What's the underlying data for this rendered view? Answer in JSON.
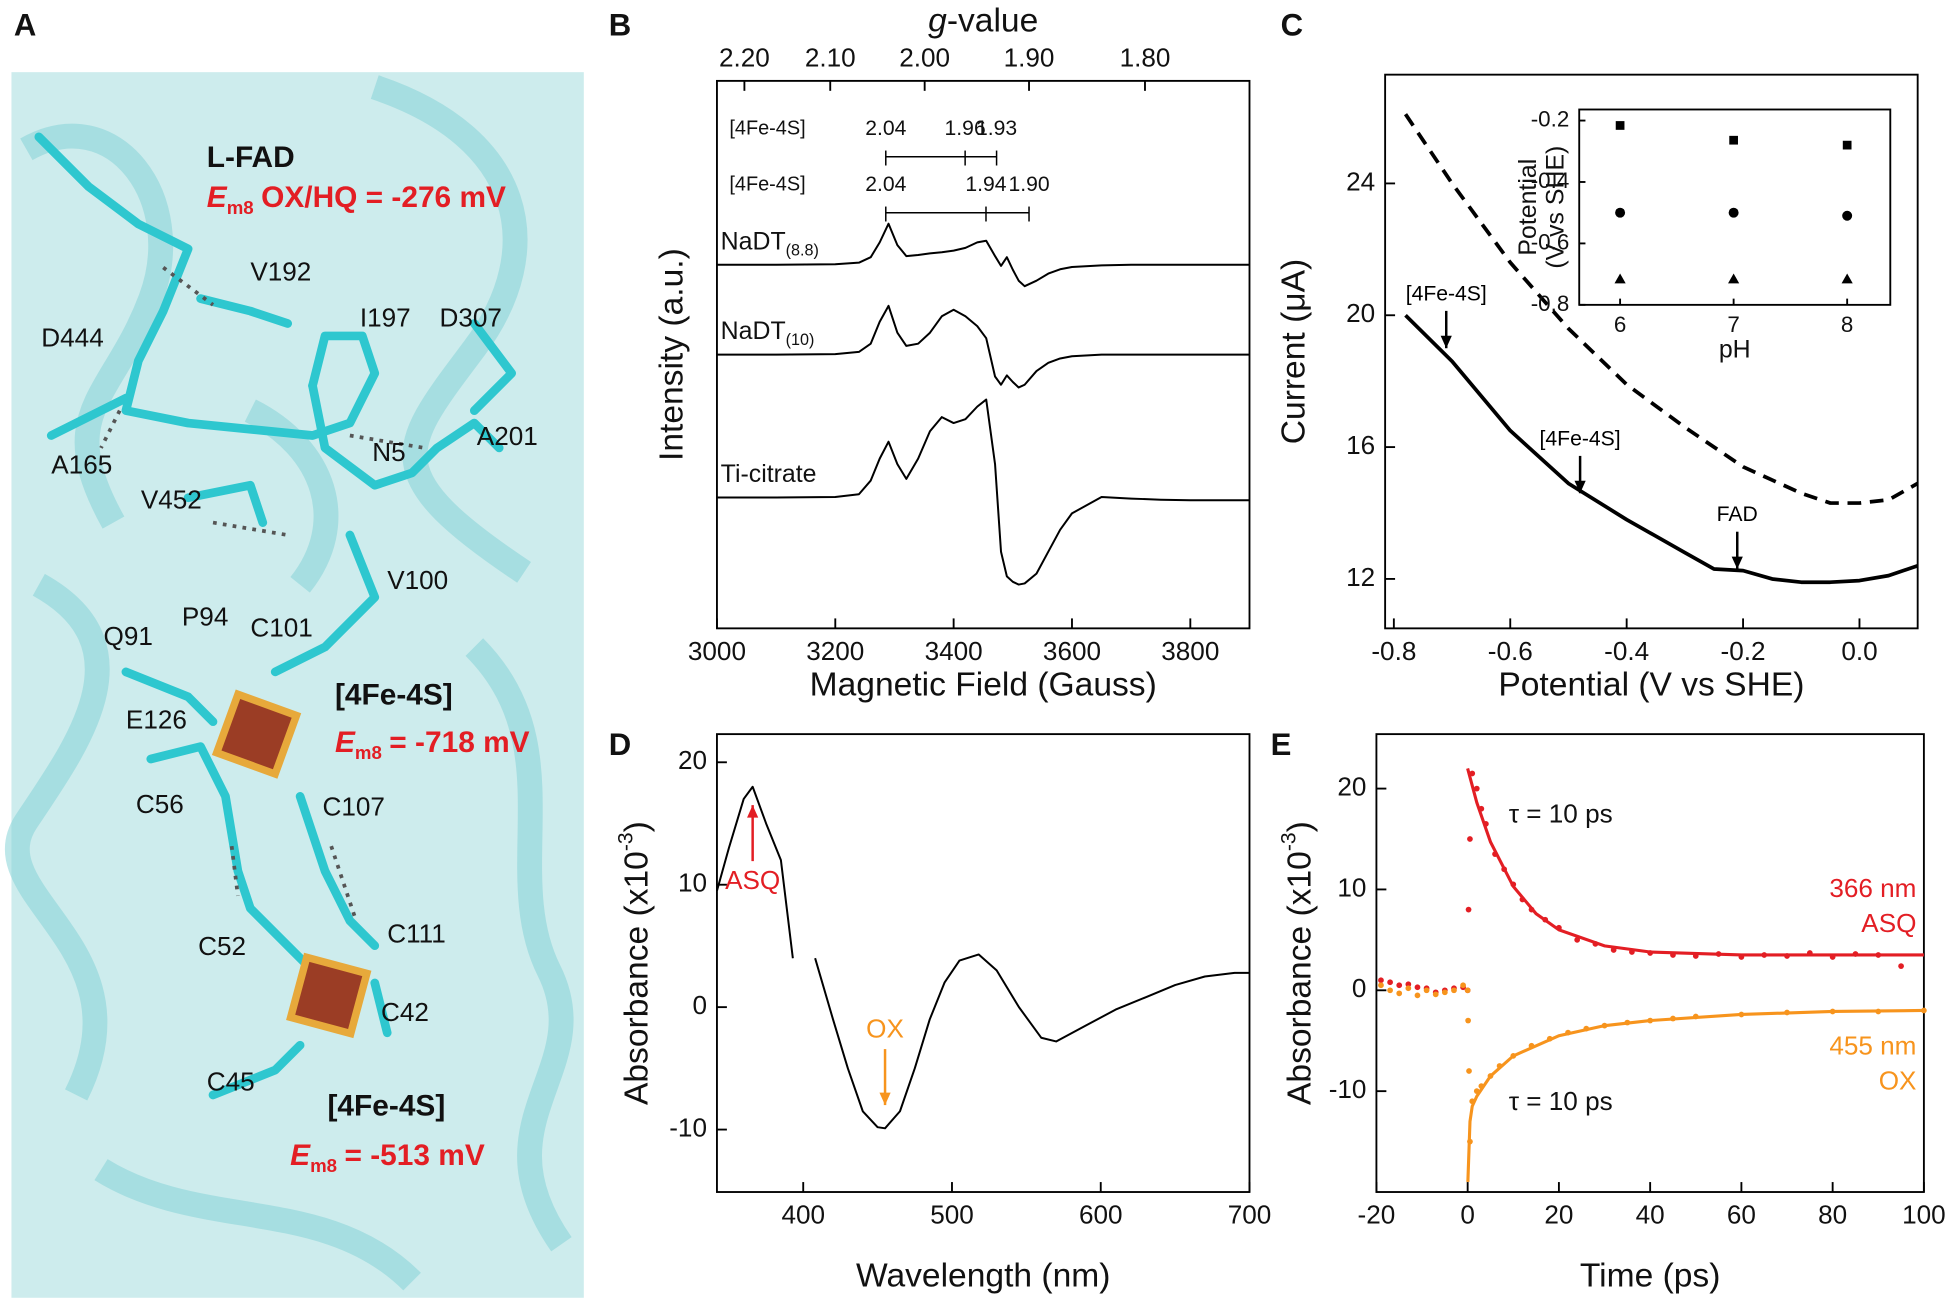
{
  "structure": {
    "panel": "A",
    "title": "L-FAD",
    "title_potential": {
      "symbol": "E",
      "subscript": "m8",
      "text": "OX/HQ = -276 mV"
    },
    "residues": [
      "V192",
      "I197",
      "D307",
      "D444",
      "A165",
      "N5",
      "A201",
      "V452",
      "V100",
      "P94",
      "C101",
      "Q91",
      "E126",
      "C56",
      "C107",
      "C52",
      "C111",
      "C42",
      "C45"
    ],
    "clusters": [
      {
        "label": "[4Fe-4S]",
        "potential": {
          "symbol": "E",
          "subscript": "m8",
          "text": "= -718 mV"
        }
      },
      {
        "label": "[4Fe-4S]",
        "potential": {
          "symbol": "E",
          "subscript": "m8",
          "text": "= -513 mV"
        }
      }
    ]
  },
  "chart_data": [
    {
      "panel": "B",
      "type": "line",
      "xlabel": "Magnetic Field (Gauss)",
      "ylabel": "Intensity (a.u.)",
      "x2label": {
        "symbol": "g",
        "text": "-value"
      },
      "xlim": [
        3000,
        3900
      ],
      "xticks": [
        3000,
        3200,
        3400,
        3600,
        3800
      ],
      "ylim": [
        0,
        10
      ],
      "x2lim": [
        2.234,
        1.7185
      ],
      "x2ticks": [
        {
          "value": 2.2,
          "label": "2.20"
        },
        {
          "value": 2.1,
          "label": "2.10"
        },
        {
          "value": 2,
          "label": "2.00"
        },
        {
          "value": 1.9,
          "label": "1.90"
        },
        {
          "value": 1.8,
          "label": "1.80"
        }
      ],
      "g_markers": [
        {
          "label": "[4Fe-4S]",
          "g": [
            2.04,
            1.96,
            1.93
          ]
        },
        {
          "label": "[4Fe-4S]",
          "g": [
            2.04,
            1.94,
            {
              "value": 1.9,
              "label": "1.90"
            }
          ]
        }
      ],
      "x": [
        3000,
        3100,
        3200,
        3240,
        3260,
        3275,
        3290,
        3305,
        3320,
        3340,
        3360,
        3380,
        3400,
        3420,
        3440,
        3455,
        3470,
        3480,
        3490,
        3500,
        3510,
        3520,
        3540,
        3560,
        3580,
        3600,
        3650,
        3700,
        3750,
        3800,
        3850,
        3900
      ],
      "series": [
        {
          "name": "NaDT",
          "subscript": "(8.8)",
          "color": "#000000",
          "values": [
            6.64,
            6.64,
            6.65,
            6.68,
            6.78,
            7.05,
            7.39,
            7.0,
            6.8,
            6.82,
            6.85,
            6.87,
            6.9,
            6.95,
            7.05,
            7.08,
            6.8,
            6.62,
            6.78,
            6.55,
            6.35,
            6.25,
            6.35,
            6.48,
            6.56,
            6.6,
            6.63,
            6.64,
            6.64,
            6.64,
            6.64,
            6.64
          ]
        },
        {
          "name": "NaDT",
          "subscript": "(10)",
          "color": "#000000",
          "values": [
            5.0,
            5.0,
            5.01,
            5.05,
            5.2,
            5.6,
            5.89,
            5.4,
            5.16,
            5.2,
            5.4,
            5.7,
            5.82,
            5.7,
            5.52,
            5.3,
            4.6,
            4.45,
            4.62,
            4.5,
            4.4,
            4.45,
            4.7,
            4.85,
            4.93,
            4.97,
            5.0,
            5.0,
            5.0,
            5.0,
            5.0,
            5.0
          ]
        },
        {
          "name": "Ti-citrate",
          "color": "#000000",
          "values": [
            2.39,
            2.39,
            2.4,
            2.45,
            2.7,
            3.1,
            3.41,
            3.0,
            2.73,
            3.1,
            3.6,
            3.86,
            3.75,
            3.82,
            4.05,
            4.18,
            3.0,
            1.4,
            0.95,
            0.85,
            0.8,
            0.82,
            1.0,
            1.4,
            1.8,
            2.1,
            2.4,
            2.37,
            2.35,
            2.34,
            2.34,
            2.34
          ]
        }
      ]
    },
    {
      "panel": "C",
      "type": "line",
      "xlabel": "Potential (V vs SHE)",
      "ylabel": "Current (μA)",
      "xlim": [
        -0.815,
        0.1
      ],
      "xticks": [
        -0.8,
        -0.6,
        -0.4,
        -0.2,
        {
          "value": 0,
          "label": "0.0"
        }
      ],
      "ylim": [
        10.5,
        27.3
      ],
      "yticks": [
        12,
        16,
        20,
        24
      ],
      "x": [
        -0.78,
        -0.7,
        -0.6,
        -0.5,
        -0.4,
        -0.3,
        -0.25,
        -0.2,
        -0.15,
        -0.1,
        -0.05,
        0,
        0.05,
        0.1
      ],
      "series": [
        {
          "color": "#000000",
          "dash": false,
          "values": [
            20,
            18.6,
            16.5,
            14.9,
            13.8,
            12.8,
            12.3,
            12.25,
            12.0,
            11.9,
            11.9,
            11.95,
            12.1,
            12.4
          ]
        },
        {
          "color": "#000000",
          "dash": true,
          "values": [
            26.1,
            24.0,
            21.6,
            19.6,
            17.9,
            16.6,
            16.0,
            15.4,
            15.0,
            14.6,
            14.3,
            14.3,
            14.4,
            14.9
          ]
        }
      ],
      "annotations": [
        {
          "text": "[4Fe-4S]",
          "x": -0.71,
          "y": 19
        },
        {
          "text": "[4Fe-4S]",
          "x": -0.48,
          "y": 14.6
        },
        {
          "text": "FAD",
          "x": -0.21,
          "y": 12.3
        }
      ]
    },
    {
      "type": "scatter",
      "inset": true,
      "xlabel": "pH",
      "ylabel_lines": [
        "Potential",
        "(V vs SHE)"
      ],
      "xlim": [
        5.64,
        8.38
      ],
      "xticks": [
        6,
        7,
        8
      ],
      "ylim": [
        -0.8,
        -0.164
      ],
      "yticks": [
        -0.2,
        -0.4,
        -0.6,
        -0.8
      ],
      "x": [
        6,
        7,
        8
      ],
      "series": [
        {
          "marker": "square",
          "color": "#000000",
          "values": [
            -0.216,
            -0.264,
            -0.28
          ]
        },
        {
          "marker": "circle",
          "color": "#000000",
          "values": [
            -0.5,
            -0.5,
            -0.51
          ]
        },
        {
          "marker": "triangle",
          "color": "#000000",
          "values": [
            -0.716,
            -0.716,
            -0.716
          ]
        }
      ]
    },
    {
      "panel": "D",
      "type": "line",
      "xlabel": "Wavelength (nm)",
      "ylabel": {
        "text": "Absorbance (x10",
        "sup": "-3",
        "after": ")"
      },
      "xlim": [
        342,
        700
      ],
      "xticks": [
        400,
        500,
        600,
        700
      ],
      "ylim": [
        -15.1,
        22.3
      ],
      "yticks": [
        -10,
        0,
        10,
        20
      ],
      "x": [
        342,
        350,
        360,
        366,
        375,
        385,
        393,
        400,
        408,
        420,
        430,
        440,
        450,
        455,
        465,
        475,
        485,
        495,
        505,
        518,
        530,
        545,
        560,
        570,
        590,
        610,
        630,
        650,
        670,
        690,
        700
      ],
      "series": [
        {
          "color": "#000000",
          "values": [
            9.5,
            13,
            17,
            18,
            15,
            12,
            4,
            null,
            4,
            -1,
            -5,
            -8.5,
            -9.8,
            -9.9,
            -8.5,
            -5,
            -1,
            2,
            3.8,
            4.3,
            3,
            0,
            -2.5,
            -2.8,
            -1.5,
            -0.2,
            0.8,
            1.8,
            2.5,
            2.8,
            2.8
          ]
        }
      ],
      "annotations": [
        {
          "text": "ASQ",
          "x": 366,
          "y": 16.5,
          "direction": "up",
          "color": "#e31e24"
        },
        {
          "text": "OX",
          "x": 455,
          "y": -8,
          "direction": "down",
          "color": "#f7941d"
        }
      ]
    },
    {
      "panel": "E",
      "type": "scatter",
      "xlabel": "Time (ps)",
      "ylabel": {
        "text": "Absorbance (x10",
        "sup": "-3",
        "after": ")"
      },
      "xlim": [
        -20,
        100
      ],
      "xticks": [
        -20,
        0,
        20,
        40,
        60,
        80,
        100
      ],
      "ylim": [
        -20,
        25.4
      ],
      "yticks": [
        -10,
        0,
        10,
        20
      ],
      "series": [
        {
          "name": "366 nm",
          "label": "ASQ",
          "color": "#e31e24",
          "x": [
            -19,
            -17,
            -15,
            -13,
            -11,
            -9,
            -7,
            -5,
            -3,
            -1,
            0,
            0.2,
            0.5,
            1,
            2,
            3,
            4,
            6,
            8,
            10,
            12,
            14,
            17,
            20,
            24,
            28,
            32,
            36,
            40,
            45,
            50,
            55,
            60,
            65,
            70,
            75,
            80,
            85,
            90,
            95
          ],
          "values": [
            1,
            0.8,
            0.5,
            0.6,
            0.3,
            0.2,
            -0.2,
            0,
            0.2,
            0.3,
            0,
            8,
            15,
            21.5,
            20,
            18,
            16.5,
            13.5,
            12,
            10.5,
            9,
            8,
            7,
            6.2,
            5,
            4.6,
            4,
            3.8,
            3.7,
            3.5,
            3.4,
            3.6,
            3.3,
            3.5,
            3.4,
            3.7,
            3.3,
            3.6,
            3.5,
            2.4
          ],
          "fit": {
            "x": [
              0,
              2,
              5,
              10,
              15,
              20,
              30,
              40,
              60,
              80,
              100
            ],
            "values": [
              22,
              18.6,
              14.7,
              10.3,
              7.6,
              6,
              4.4,
              3.8,
              3.5,
              3.5,
              3.5
            ]
          }
        },
        {
          "name": "455 nm",
          "label": "OX",
          "color": "#f7941d",
          "x": [
            -19,
            -17,
            -15,
            -13,
            -11,
            -9,
            -7,
            -5,
            -3,
            -1,
            0,
            0.1,
            0.3,
            0.5,
            1,
            2,
            3,
            5,
            7,
            10,
            14,
            18,
            22,
            26,
            30,
            35,
            40,
            45,
            50,
            60,
            70,
            80,
            90,
            100
          ],
          "values": [
            0.5,
            0,
            -0.3,
            0.2,
            -0.5,
            0,
            -0.4,
            -0.2,
            0,
            0.5,
            0,
            -3,
            -8,
            -15,
            -11,
            -10,
            -9.5,
            -8.5,
            -7.5,
            -6.5,
            -5.5,
            -4.8,
            -4.2,
            -3.8,
            -3.5,
            -3.2,
            -3,
            -2.8,
            -2.6,
            -2.4,
            -2.2,
            -2.1,
            -2.1,
            -2
          ],
          "fit": {
            "x": [
              0.05,
              0.5,
              1,
              2,
              5,
              10,
              20,
              30,
              40,
              60,
              80,
              100
            ],
            "values": [
              -19,
              -13,
              -11.5,
              -10.5,
              -8.5,
              -6.5,
              -4.5,
              -3.5,
              -3,
              -2.4,
              -2.1,
              -2
            ]
          }
        }
      ],
      "annotations": [
        {
          "text": "τ = 10 ps",
          "x": 9,
          "y": 17.3
        },
        {
          "text": "τ = 10 ps",
          "x": 9,
          "y": -11.2
        }
      ]
    }
  ]
}
